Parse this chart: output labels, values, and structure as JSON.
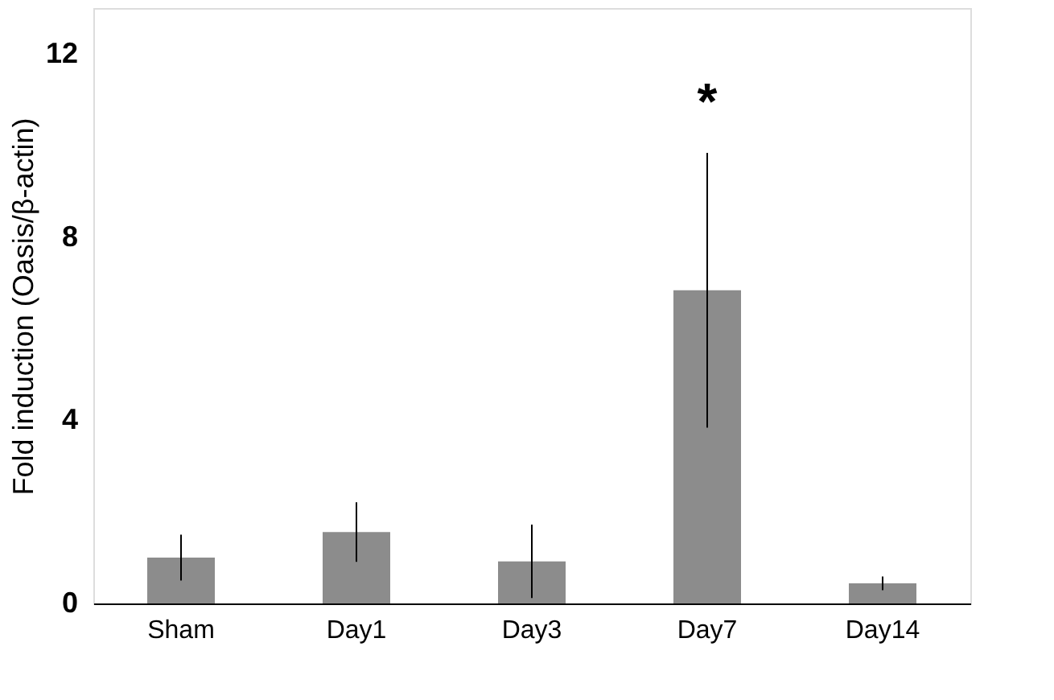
{
  "chart_data": {
    "type": "bar",
    "ylabel": "Fold induction (Oasis/β-actin)",
    "categories": [
      "Sham",
      "Day1",
      "Day3",
      "Day7",
      "Day14"
    ],
    "values": [
      1.0,
      1.56,
      0.92,
      6.84,
      0.44
    ],
    "errors": [
      0.5,
      0.65,
      0.8,
      3.0,
      0.15
    ],
    "color": "#8c8c8c",
    "ylim": [
      0,
      13
    ],
    "yticks": [
      0,
      4,
      8,
      12
    ],
    "grid": false,
    "annotations": [
      "*"
    ]
  }
}
